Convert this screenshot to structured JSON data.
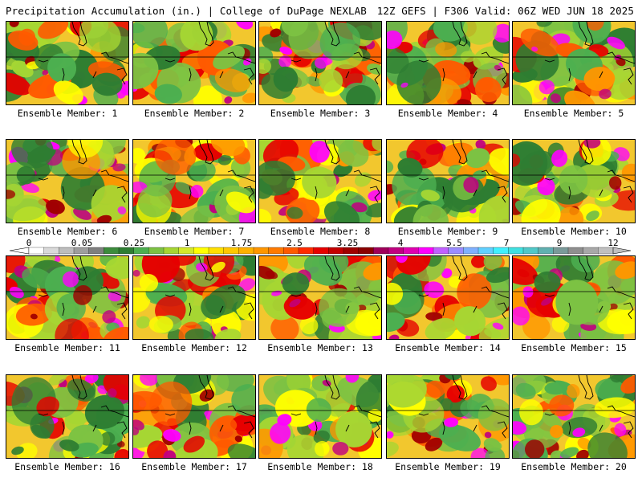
{
  "header": {
    "left": "Precipitation Accumulation (in.) | College of DuPage NEXLAB",
    "right": "12Z GEFS | F306 Valid: 06Z WED JUN 18 2025"
  },
  "members": [
    {
      "label": "Ensemble Member: 1",
      "seed": 11,
      "wet": 0.55
    },
    {
      "label": "Ensemble Member: 2",
      "seed": 23,
      "wet": 0.45
    },
    {
      "label": "Ensemble Member: 3",
      "seed": 37,
      "wet": 0.6
    },
    {
      "label": "Ensemble Member: 4",
      "seed": 41,
      "wet": 0.7
    },
    {
      "label": "Ensemble Member: 5",
      "seed": 53,
      "wet": 0.65
    },
    {
      "label": "Ensemble Member: 6",
      "seed": 67,
      "wet": 0.6
    },
    {
      "label": "Ensemble Member: 7",
      "seed": 71,
      "wet": 0.5
    },
    {
      "label": "Ensemble Member: 8",
      "seed": 83,
      "wet": 0.55
    },
    {
      "label": "Ensemble Member: 9",
      "seed": 97,
      "wet": 0.35
    },
    {
      "label": "Ensemble Member: 10",
      "seed": 101,
      "wet": 0.5
    },
    {
      "label": "Ensemble Member: 11",
      "seed": 113,
      "wet": 0.65
    },
    {
      "label": "Ensemble Member: 12",
      "seed": 127,
      "wet": 0.35
    },
    {
      "label": "Ensemble Member: 13",
      "seed": 131,
      "wet": 0.5
    },
    {
      "label": "Ensemble Member: 14",
      "seed": 149,
      "wet": 0.45
    },
    {
      "label": "Ensemble Member: 15",
      "seed": 151,
      "wet": 0.55
    },
    {
      "label": "Ensemble Member: 16",
      "seed": 163,
      "wet": 0.45
    },
    {
      "label": "Ensemble Member: 17",
      "seed": 173,
      "wet": 0.55
    },
    {
      "label": "Ensemble Member: 18",
      "seed": 181,
      "wet": 0.6
    },
    {
      "label": "Ensemble Member: 19",
      "seed": 191,
      "wet": 0.5
    },
    {
      "label": "Ensemble Member: 20",
      "seed": 199,
      "wet": 0.5
    }
  ],
  "colorbar": {
    "ticks": [
      "0",
      "0.05",
      "0.25",
      "1",
      "1.75",
      "2.5",
      "3.25",
      "4",
      "5.5",
      "7",
      "9",
      "12"
    ],
    "colors": [
      "#ffffff",
      "#d9d9d9",
      "#bdbdbd",
      "#9e9e9e",
      "#7f7f7f",
      "#3c8c3c",
      "#2e7d32",
      "#4caf50",
      "#7cc243",
      "#a6d633",
      "#d4e82a",
      "#ffff00",
      "#ffe000",
      "#ffc800",
      "#ffb000",
      "#ff9600",
      "#ff7a00",
      "#ff5a00",
      "#ff2a00",
      "#e60000",
      "#c40000",
      "#a00000",
      "#8b0000",
      "#a0005a",
      "#c00080",
      "#e000b0",
      "#ff00ff",
      "#c060ff",
      "#9a8cff",
      "#7fb0ff",
      "#60d0ff",
      "#40f0ff",
      "#40e0e0",
      "#50c8c8",
      "#60b0b0",
      "#7a9a9a",
      "#8f8f8f",
      "#a8a8a8",
      "#c0c0c0"
    ]
  }
}
